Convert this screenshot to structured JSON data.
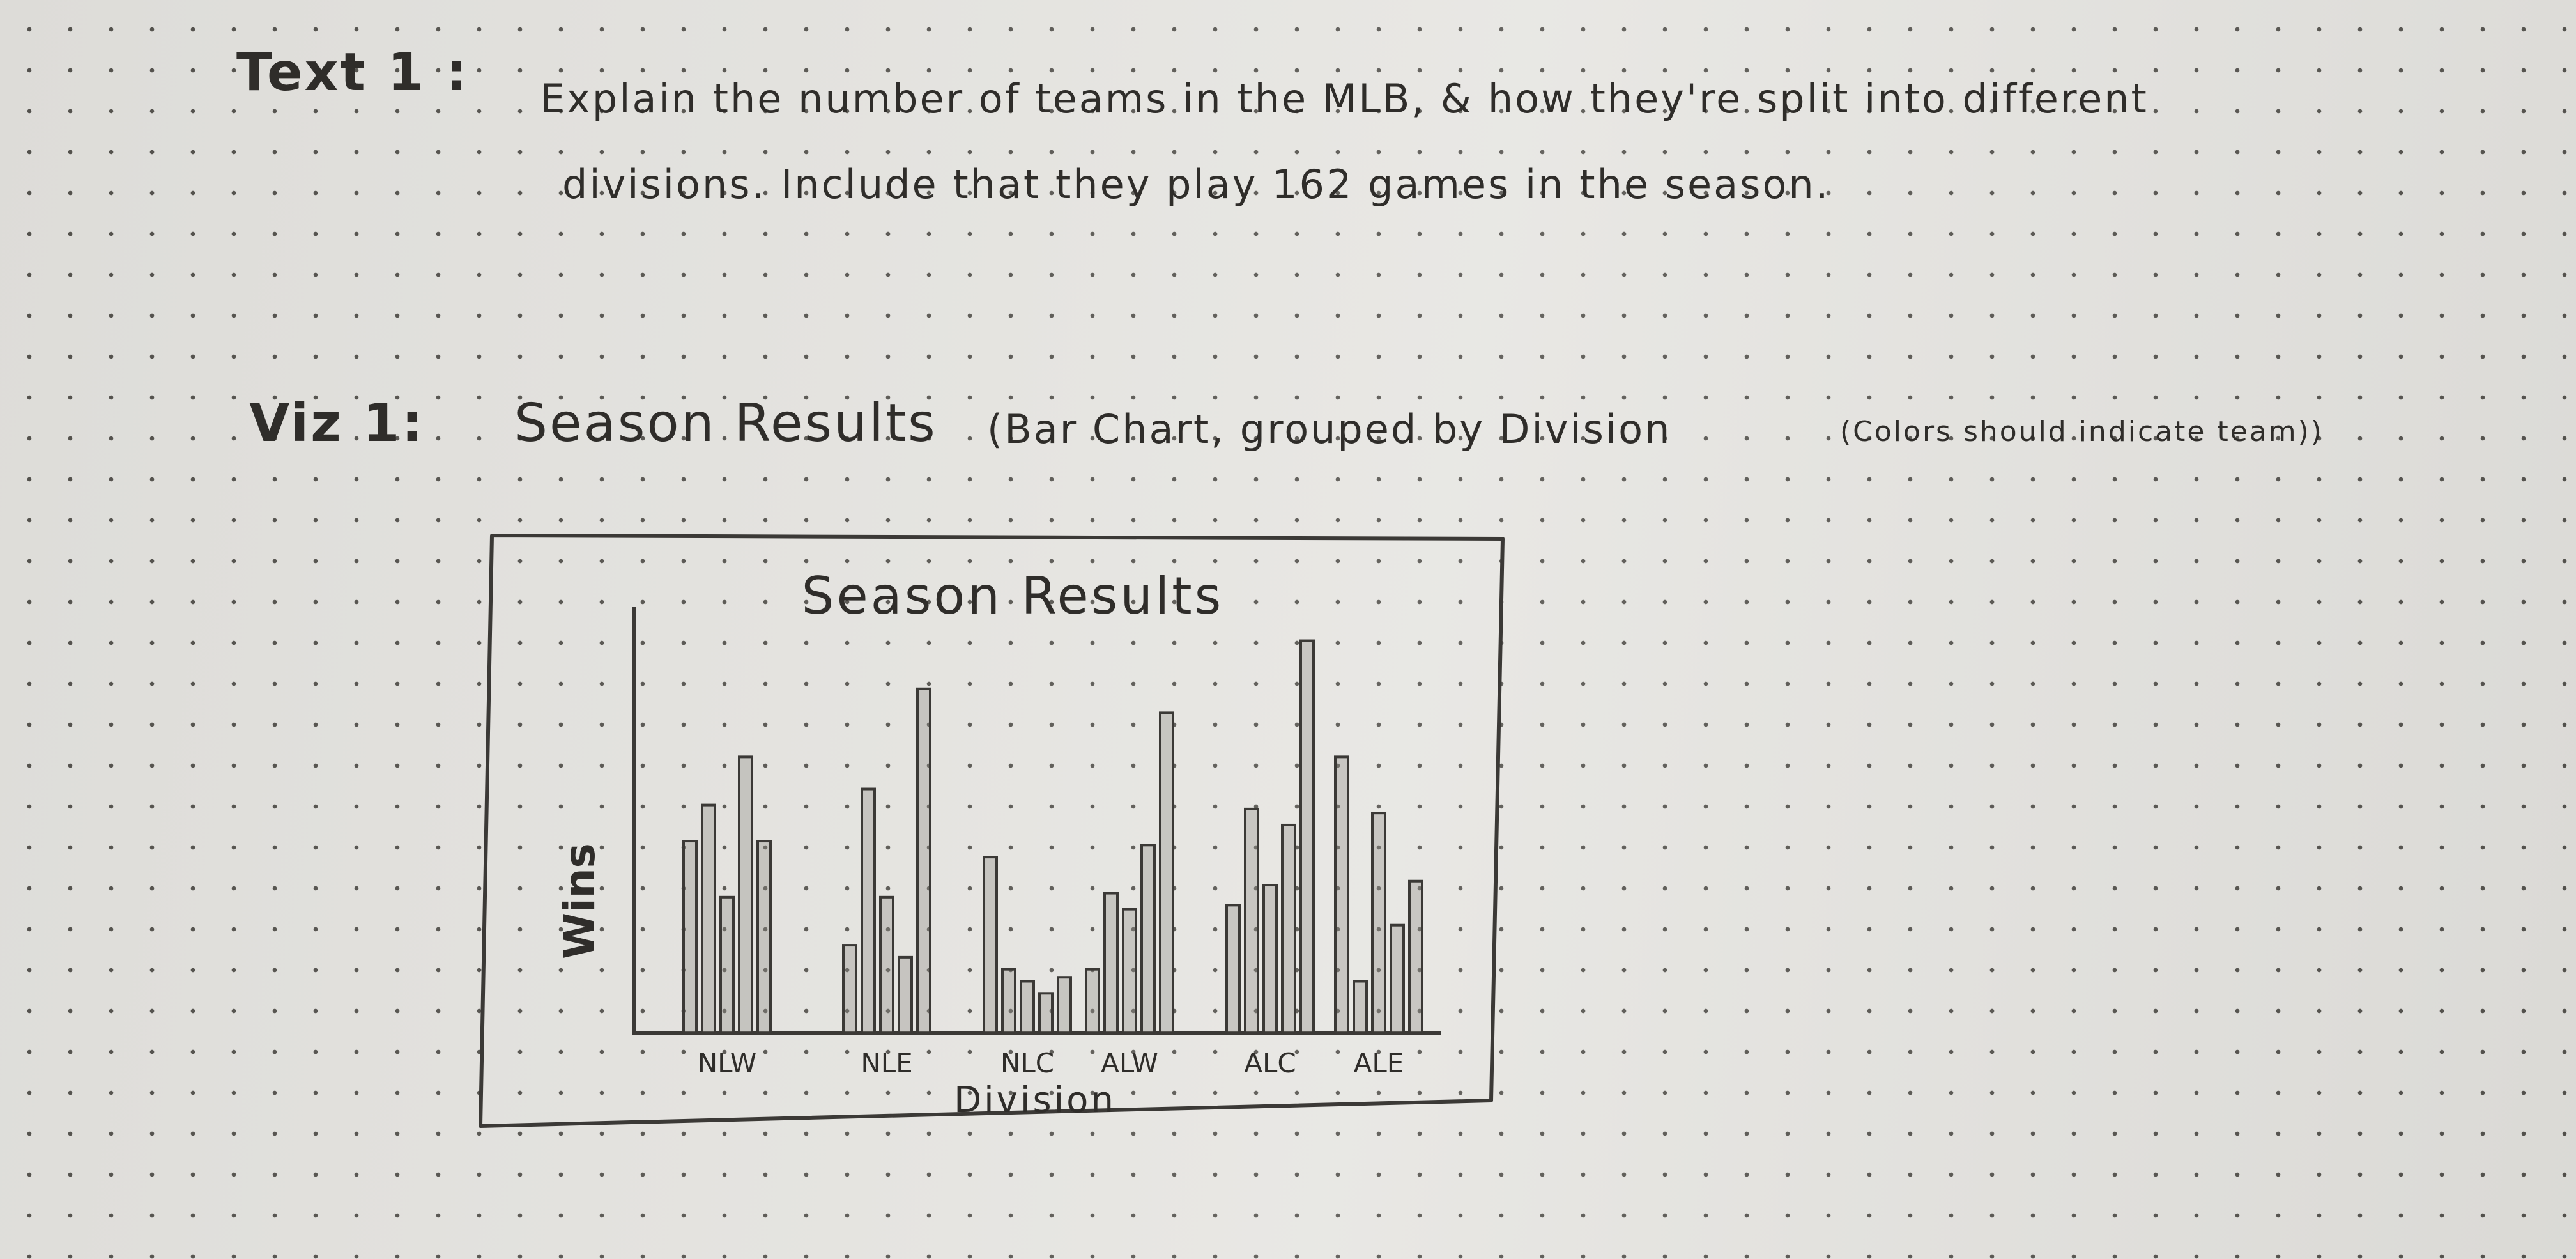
{
  "text1": {
    "label": "Text 1 :",
    "line1": "Explain the number of teams in the MLB, & how they're split into different",
    "line2": "divisions. Include that they play 162 games in the season."
  },
  "viz1": {
    "label": "Viz 1:",
    "title": "Season Results",
    "spec": "(Bar Chart, grouped by Division",
    "note": "(Colors should indicate team))"
  },
  "chart_data": {
    "type": "bar",
    "title": "Season Results",
    "xlabel": "Division",
    "ylabel": "Wins",
    "categories": [
      "NLW",
      "NLE",
      "NLC",
      "ALW",
      "ALC",
      "ALE"
    ],
    "grouped_values": [
      [
        48,
        57,
        34,
        69,
        48
      ],
      [
        22,
        61,
        34,
        19,
        86
      ],
      [
        44,
        16,
        13,
        10,
        14
      ],
      [
        16,
        35,
        31,
        47,
        80
      ],
      [
        32,
        56,
        37,
        52,
        98
      ],
      [
        69,
        13,
        55,
        27,
        38
      ]
    ],
    "ylim": [
      0,
      100
    ],
    "grid": false,
    "legend": "none"
  }
}
